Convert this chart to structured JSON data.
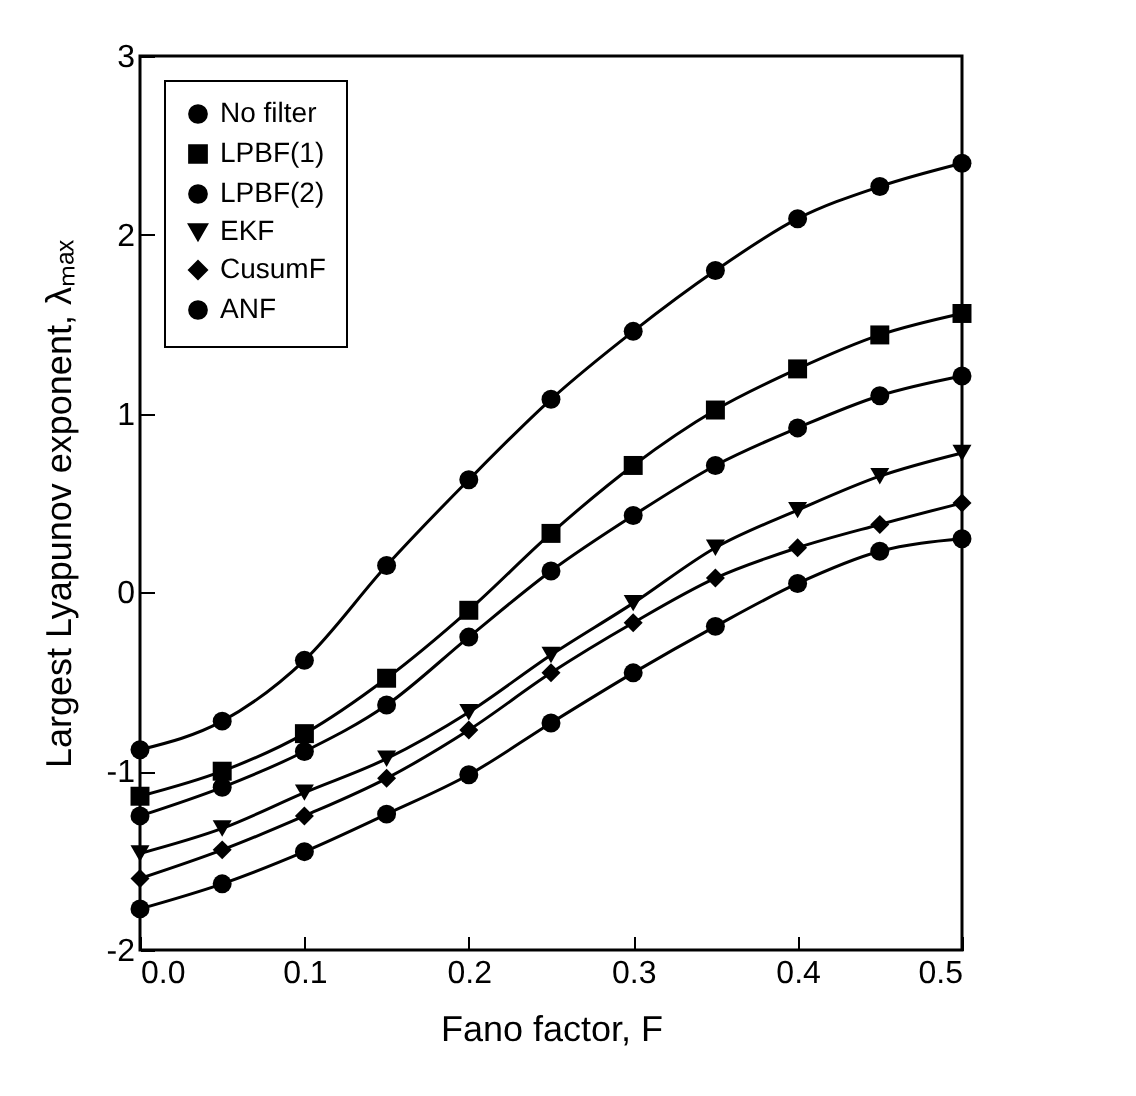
{
  "chart_data": {
    "type": "line",
    "xlabel": "Fano factor, F",
    "ylabel": "Largest Lyapunov exponent, λₘₐₓ",
    "x": [
      0.0,
      0.05,
      0.1,
      0.15,
      0.2,
      0.25,
      0.3,
      0.35,
      0.4,
      0.45,
      0.5
    ],
    "series": [
      {
        "name": "No filter",
        "color": "#000000",
        "marker": "circle",
        "values": [
          -0.88,
          -0.72,
          -0.38,
          0.15,
          0.63,
          1.08,
          1.46,
          1.8,
          2.09,
          2.27,
          2.4
        ]
      },
      {
        "name": "LPBF(1)",
        "color": "#000000",
        "marker": "square",
        "values": [
          -1.14,
          -1.0,
          -0.79,
          -0.48,
          -0.1,
          0.33,
          0.71,
          1.02,
          1.25,
          1.44,
          1.56
        ]
      },
      {
        "name": "LPBF(2)",
        "color": "#000000",
        "marker": "circle",
        "values": [
          -1.25,
          -1.09,
          -0.89,
          -0.63,
          -0.25,
          0.12,
          0.43,
          0.71,
          0.92,
          1.1,
          1.21
        ]
      },
      {
        "name": "EKF",
        "color": "#000000",
        "marker": "triangle",
        "values": [
          -1.46,
          -1.32,
          -1.12,
          -0.93,
          -0.67,
          -0.35,
          -0.06,
          0.25,
          0.46,
          0.65,
          0.78
        ]
      },
      {
        "name": "CusumF",
        "color": "#000000",
        "marker": "diamond",
        "values": [
          -1.6,
          -1.44,
          -1.25,
          -1.04,
          -0.77,
          -0.45,
          -0.17,
          0.08,
          0.25,
          0.38,
          0.5
        ]
      },
      {
        "name": "ANF",
        "color": "#000000",
        "marker": "circle",
        "values": [
          -1.77,
          -1.63,
          -1.45,
          -1.24,
          -1.02,
          -0.73,
          -0.45,
          -0.19,
          0.05,
          0.23,
          0.3
        ]
      }
    ],
    "xlim": [
      0,
      0.5
    ],
    "xticks": [
      {
        "value": 0,
        "label": "0.0"
      },
      0.1,
      0.2,
      0.3,
      0.4,
      0.5
    ],
    "ylim": [
      -2,
      3
    ],
    "yticks": [
      {
        "value": -2,
        "label": "-2"
      },
      {
        "value": -1,
        "label": "-1"
      },
      {
        "value": 0,
        "label": "0"
      },
      {
        "value": 1,
        "label": "1"
      },
      {
        "value": 2,
        "label": "2"
      },
      {
        "value": 3,
        "label": "3"
      }
    ],
    "grid": false,
    "legend": "top left",
    "line_style": "solid"
  }
}
